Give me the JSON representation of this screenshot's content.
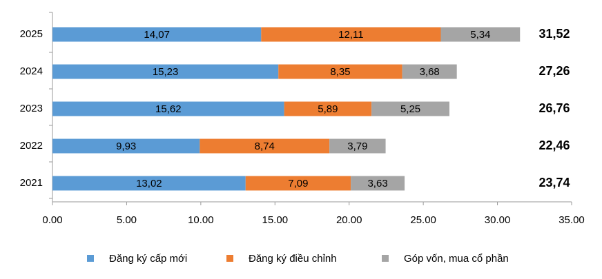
{
  "chart_data": {
    "type": "stacked-hbar",
    "categories": [
      "2025",
      "2024",
      "2023",
      "2022",
      "2021"
    ],
    "series": [
      {
        "name": "Đăng ký cấp mới",
        "color": "#5b9bd5",
        "values": [
          14.07,
          15.23,
          15.62,
          9.93,
          13.02
        ],
        "value_labels": [
          "14,07",
          "15,23",
          "15,62",
          "9,93",
          "13,02"
        ]
      },
      {
        "name": "Đăng ký điều chỉnh",
        "color": "#ed7d31",
        "values": [
          12.11,
          8.35,
          5.89,
          8.74,
          7.09
        ],
        "value_labels": [
          "12,11",
          "8,35",
          "5,89",
          "8,74",
          "7,09"
        ]
      },
      {
        "name": "Góp vốn, mua cổ phần",
        "color": "#a5a5a5",
        "values": [
          5.34,
          3.68,
          5.25,
          3.79,
          3.63
        ],
        "value_labels": [
          "5,34",
          "3,68",
          "5,25",
          "3,79",
          "3,63"
        ]
      }
    ],
    "totals": [
      31.52,
      27.26,
      26.76,
      22.46,
      23.74
    ],
    "total_labels": [
      "31,52",
      "27,26",
      "26,76",
      "22,46",
      "23,74"
    ],
    "xlim": [
      0,
      35
    ],
    "xticks": [
      {
        "value": 0,
        "label": "0.00"
      },
      {
        "value": 5,
        "label": "5.00"
      },
      {
        "value": 10,
        "label": "10.00"
      },
      {
        "value": 15,
        "label": "15.00"
      },
      {
        "value": 20,
        "label": "20.00"
      },
      {
        "value": 25,
        "label": "25.00"
      },
      {
        "value": 30,
        "label": "30.00"
      },
      {
        "value": 35,
        "label": "35.00"
      }
    ],
    "legend": "bottom"
  }
}
